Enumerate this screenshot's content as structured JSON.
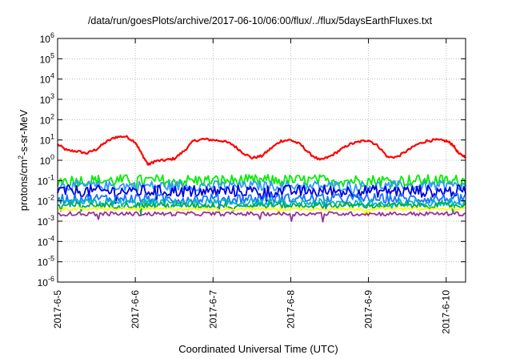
{
  "chart_data": {
    "type": "line",
    "title": "/data/run/goesPlots/archive/2017-06-10/06:00/flux/../flux/5daysEarthFluxes.txt",
    "xlabel": "Coordinated Universal Time (UTC)",
    "ylabel_prefix": "protons/cm",
    "ylabel_sup": "2",
    "ylabel_suffix": "-s-sr-MeV",
    "y_scale": "log",
    "ylim": [
      1e-06,
      1000000.0
    ],
    "y_ticks": [
      {
        "base": "10",
        "exp": "-6",
        "value": 1e-06
      },
      {
        "base": "10",
        "exp": "-5",
        "value": 1e-05
      },
      {
        "base": "10",
        "exp": "-4",
        "value": 0.0001
      },
      {
        "base": "10",
        "exp": "-3",
        "value": 0.001
      },
      {
        "base": "10",
        "exp": "-2",
        "value": 0.01
      },
      {
        "base": "10",
        "exp": "-1",
        "value": 0.1
      },
      {
        "base": "10",
        "exp": "0",
        "value": 1
      },
      {
        "base": "10",
        "exp": "1",
        "value": 10
      },
      {
        "base": "10",
        "exp": "2",
        "value": 100
      },
      {
        "base": "10",
        "exp": "3",
        "value": 1000
      },
      {
        "base": "10",
        "exp": "4",
        "value": 10000
      },
      {
        "base": "10",
        "exp": "5",
        "value": 100000
      },
      {
        "base": "10",
        "exp": "6",
        "value": 1000000
      }
    ],
    "xlim": [
      "2017-06-05T00:00",
      "2017-06-10T06:00"
    ],
    "x_ticks": [
      {
        "label": "2017-6-5",
        "date": "2017-06-05T00:00"
      },
      {
        "label": "2017-6-6",
        "date": "2017-06-06T00:00"
      },
      {
        "label": "2017-6-7",
        "date": "2017-06-07T00:00"
      },
      {
        "label": "2017-6-8",
        "date": "2017-06-08T00:00"
      },
      {
        "label": "2017-6-9",
        "date": "2017-06-09T00:00"
      },
      {
        "label": "2017-6-10",
        "date": "2017-06-10T00:00"
      }
    ],
    "grid": true,
    "legend": "none",
    "series": [
      {
        "color": "#ff0000",
        "x": [
          "2017-06-05T00:00",
          "2017-06-05T03:00",
          "2017-06-05T06:00",
          "2017-06-05T09:00",
          "2017-06-05T12:00",
          "2017-06-05T15:00",
          "2017-06-05T18:00",
          "2017-06-05T21:00",
          "2017-06-06T00:00",
          "2017-06-06T02:00",
          "2017-06-06T04:00",
          "2017-06-06T06:00",
          "2017-06-06T09:00",
          "2017-06-06T12:00",
          "2017-06-06T15:00",
          "2017-06-06T18:00",
          "2017-06-06T21:00",
          "2017-06-07T00:00",
          "2017-06-07T03:00",
          "2017-06-07T06:00",
          "2017-06-07T09:00",
          "2017-06-07T12:00",
          "2017-06-07T15:00",
          "2017-06-07T18:00",
          "2017-06-07T21:00",
          "2017-06-08T00:00",
          "2017-06-08T03:00",
          "2017-06-08T06:00",
          "2017-06-08T09:00",
          "2017-06-08T12:00",
          "2017-06-08T15:00",
          "2017-06-08T18:00",
          "2017-06-08T21:00",
          "2017-06-09T00:00",
          "2017-06-09T03:00",
          "2017-06-09T06:00",
          "2017-06-09T09:00",
          "2017-06-09T12:00",
          "2017-06-09T15:00",
          "2017-06-09T18:00",
          "2017-06-09T21:00",
          "2017-06-10T00:00",
          "2017-06-10T02:00",
          "2017-06-10T04:00",
          "2017-06-10T06:00"
        ],
        "y": [
          6,
          3,
          2.8,
          2.2,
          3.5,
          8,
          14,
          15,
          8,
          2,
          0.6,
          0.9,
          1.0,
          1.2,
          2.8,
          9,
          11,
          10,
          9,
          6,
          2.5,
          1.3,
          1.6,
          4,
          9,
          10,
          6,
          2,
          1.0,
          1.5,
          3,
          6,
          8,
          10,
          5,
          1.4,
          1.5,
          3,
          6,
          9,
          10,
          9,
          6,
          2,
          1.5
        ]
      },
      {
        "color": "#00ee00",
        "base": 0.1,
        "amp": 0.6,
        "x": [
          "2017-06-05T00:00",
          "2017-06-10T06:00"
        ]
      },
      {
        "color": "#3399ff",
        "base": 0.055,
        "amp": 0.5,
        "x": [
          "2017-06-05T00:00",
          "2017-06-10T06:00"
        ]
      },
      {
        "color": "#0000dd",
        "base": 0.03,
        "amp": 0.6,
        "x": [
          "2017-06-05T00:00",
          "2017-06-10T06:00"
        ]
      },
      {
        "color": "#1a73ff",
        "base": 0.013,
        "amp": 0.5,
        "x": [
          "2017-06-05T00:00",
          "2017-06-10T06:00"
        ]
      },
      {
        "color": "#00bbbb",
        "base": 0.008,
        "amp": 0.4,
        "x": [
          "2017-06-05T00:00",
          "2017-06-10T06:00"
        ]
      },
      {
        "color": "#00aa55",
        "base": 0.006,
        "amp": 0.3,
        "x": [
          "2017-06-05T00:00",
          "2017-06-10T06:00"
        ]
      },
      {
        "color": "#ffff00",
        "base": 0.004,
        "amp": 0.15,
        "x": [
          "2017-06-05T00:00",
          "2017-06-10T06:00"
        ]
      },
      {
        "color": "#993399",
        "base": 0.0023,
        "amp": 0.2,
        "x": [
          "2017-06-05T00:00",
          "2017-06-10T06:00"
        ]
      }
    ]
  }
}
